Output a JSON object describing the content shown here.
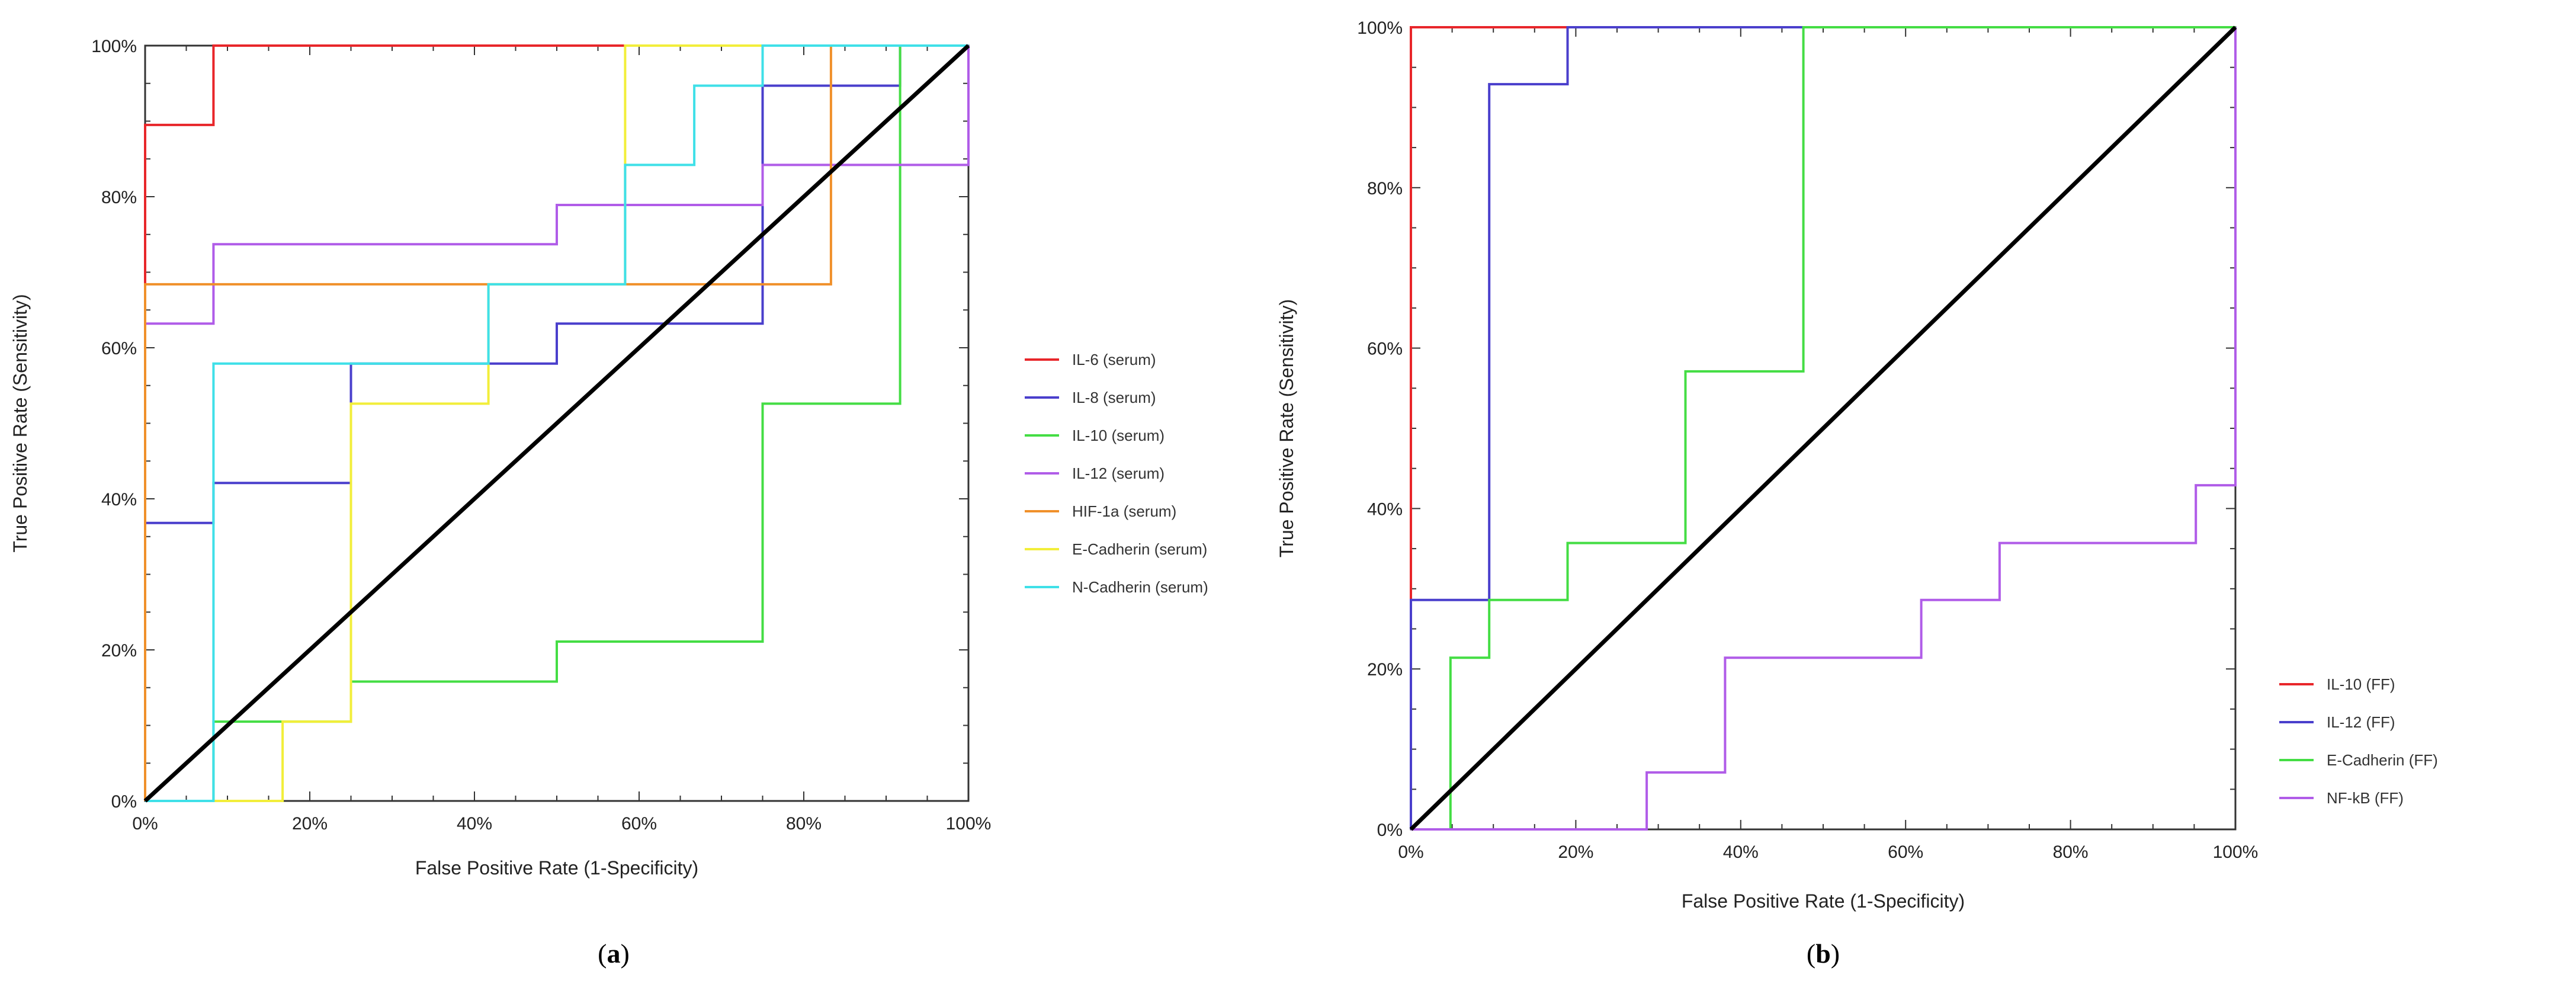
{
  "chart_data": [
    {
      "type": "line",
      "panel": "a",
      "caption": {
        "open": "(",
        "letter": "a",
        "close": ")"
      },
      "xlabel": "False Positive Rate (1-Specificity)",
      "ylabel": "True Positive Rate (Sensitivity)",
      "xlim": [
        0,
        100
      ],
      "ylim": [
        0,
        100
      ],
      "x_ticks": [
        "0%",
        "20%",
        "40%",
        "60%",
        "80%",
        "100%"
      ],
      "y_ticks": [
        "0%",
        "20%",
        "40%",
        "60%",
        "80%",
        "100%"
      ],
      "legend_position": "right",
      "diagonal_reference": true,
      "series": [
        {
          "name": "IL-6  (serum)",
          "color": "#e8262a",
          "points": [
            [
              0,
              0
            ],
            [
              0,
              89.5
            ],
            [
              8.3,
              89.5
            ],
            [
              8.3,
              100
            ],
            [
              100,
              100
            ]
          ]
        },
        {
          "name": "IL-8 (serum)",
          "color": "#4a3fcc",
          "points": [
            [
              0,
              0
            ],
            [
              0,
              36.8
            ],
            [
              8.3,
              36.8
            ],
            [
              8.3,
              42.1
            ],
            [
              25,
              42.1
            ],
            [
              25,
              57.9
            ],
            [
              50,
              57.9
            ],
            [
              50,
              63.2
            ],
            [
              75,
              63.2
            ],
            [
              75,
              94.7
            ],
            [
              91.7,
              94.7
            ],
            [
              91.7,
              100
            ],
            [
              100,
              100
            ]
          ]
        },
        {
          "name": "IL-10 (serum)",
          "color": "#44dd44",
          "points": [
            [
              0,
              0
            ],
            [
              8.3,
              0
            ],
            [
              8.3,
              10.5
            ],
            [
              25,
              10.5
            ],
            [
              25,
              15.8
            ],
            [
              50,
              15.8
            ],
            [
              50,
              21.1
            ],
            [
              75,
              21.1
            ],
            [
              75,
              52.6
            ],
            [
              91.7,
              52.6
            ],
            [
              91.7,
              100
            ],
            [
              100,
              100
            ]
          ]
        },
        {
          "name": "IL-12 (serum)",
          "color": "#b05ce8",
          "points": [
            [
              0,
              0
            ],
            [
              0,
              63.2
            ],
            [
              8.3,
              63.2
            ],
            [
              8.3,
              73.7
            ],
            [
              50,
              73.7
            ],
            [
              50,
              78.9
            ],
            [
              75,
              78.9
            ],
            [
              75,
              84.2
            ],
            [
              100,
              84.2
            ],
            [
              100,
              100
            ]
          ]
        },
        {
          "name": "HIF-1a (serum)",
          "color": "#f0902a",
          "points": [
            [
              0,
              0
            ],
            [
              0,
              68.4
            ],
            [
              83.3,
              68.4
            ],
            [
              83.3,
              100
            ],
            [
              100,
              100
            ]
          ]
        },
        {
          "name": "E-Cadherin (serum)",
          "color": "#f2ee3a",
          "points": [
            [
              0,
              0
            ],
            [
              16.7,
              0
            ],
            [
              16.7,
              10.5
            ],
            [
              25,
              10.5
            ],
            [
              25,
              52.6
            ],
            [
              41.7,
              52.6
            ],
            [
              41.7,
              68.4
            ],
            [
              58.3,
              68.4
            ],
            [
              58.3,
              100
            ],
            [
              100,
              100
            ]
          ]
        },
        {
          "name": "N-Cadherin (serum)",
          "color": "#3fe0e8",
          "points": [
            [
              0,
              0
            ],
            [
              8.3,
              0
            ],
            [
              8.3,
              57.9
            ],
            [
              41.7,
              57.9
            ],
            [
              41.7,
              68.4
            ],
            [
              58.3,
              68.4
            ],
            [
              58.3,
              84.2
            ],
            [
              66.7,
              84.2
            ],
            [
              66.7,
              94.7
            ],
            [
              75,
              94.7
            ],
            [
              75,
              100
            ],
            [
              100,
              100
            ]
          ]
        }
      ]
    },
    {
      "type": "line",
      "panel": "b",
      "caption": {
        "open": "(",
        "letter": "b",
        "close": ")"
      },
      "xlabel": "False Positive Rate (1-Specificity)",
      "ylabel": "True Positive Rate (Sensitivity)",
      "xlim": [
        0,
        100
      ],
      "ylim": [
        0,
        100
      ],
      "x_ticks": [
        "0%",
        "20%",
        "40%",
        "60%",
        "80%",
        "100%"
      ],
      "y_ticks": [
        "0%",
        "20%",
        "40%",
        "60%",
        "80%",
        "100%"
      ],
      "legend_position": "right",
      "diagonal_reference": true,
      "series": [
        {
          "name": "IL-10  (FF)",
          "color": "#e8262a",
          "points": [
            [
              0,
              0
            ],
            [
              0,
              100
            ],
            [
              100,
              100
            ]
          ]
        },
        {
          "name": "IL-12  (FF)",
          "color": "#4a3fcc",
          "points": [
            [
              0,
              0
            ],
            [
              0,
              28.6
            ],
            [
              9.5,
              28.6
            ],
            [
              9.5,
              92.9
            ],
            [
              19,
              92.9
            ],
            [
              19,
              100
            ],
            [
              100,
              100
            ]
          ]
        },
        {
          "name": "E-Cadherin  (FF)",
          "color": "#44dd44",
          "points": [
            [
              0,
              0
            ],
            [
              4.8,
              0
            ],
            [
              4.8,
              21.4
            ],
            [
              9.5,
              21.4
            ],
            [
              9.5,
              28.6
            ],
            [
              19,
              28.6
            ],
            [
              19,
              35.7
            ],
            [
              33.3,
              35.7
            ],
            [
              33.3,
              57.1
            ],
            [
              47.6,
              57.1
            ],
            [
              47.6,
              100
            ],
            [
              100,
              100
            ]
          ]
        },
        {
          "name": "NF-kB  (FF)",
          "color": "#b05ce8",
          "points": [
            [
              0,
              0
            ],
            [
              28.6,
              0
            ],
            [
              28.6,
              7.1
            ],
            [
              38.1,
              7.1
            ],
            [
              38.1,
              21.4
            ],
            [
              61.9,
              21.4
            ],
            [
              61.9,
              28.6
            ],
            [
              71.4,
              28.6
            ],
            [
              71.4,
              35.7
            ],
            [
              95.2,
              35.7
            ],
            [
              95.2,
              42.9
            ],
            [
              100,
              42.9
            ],
            [
              100,
              100
            ]
          ]
        }
      ]
    }
  ]
}
